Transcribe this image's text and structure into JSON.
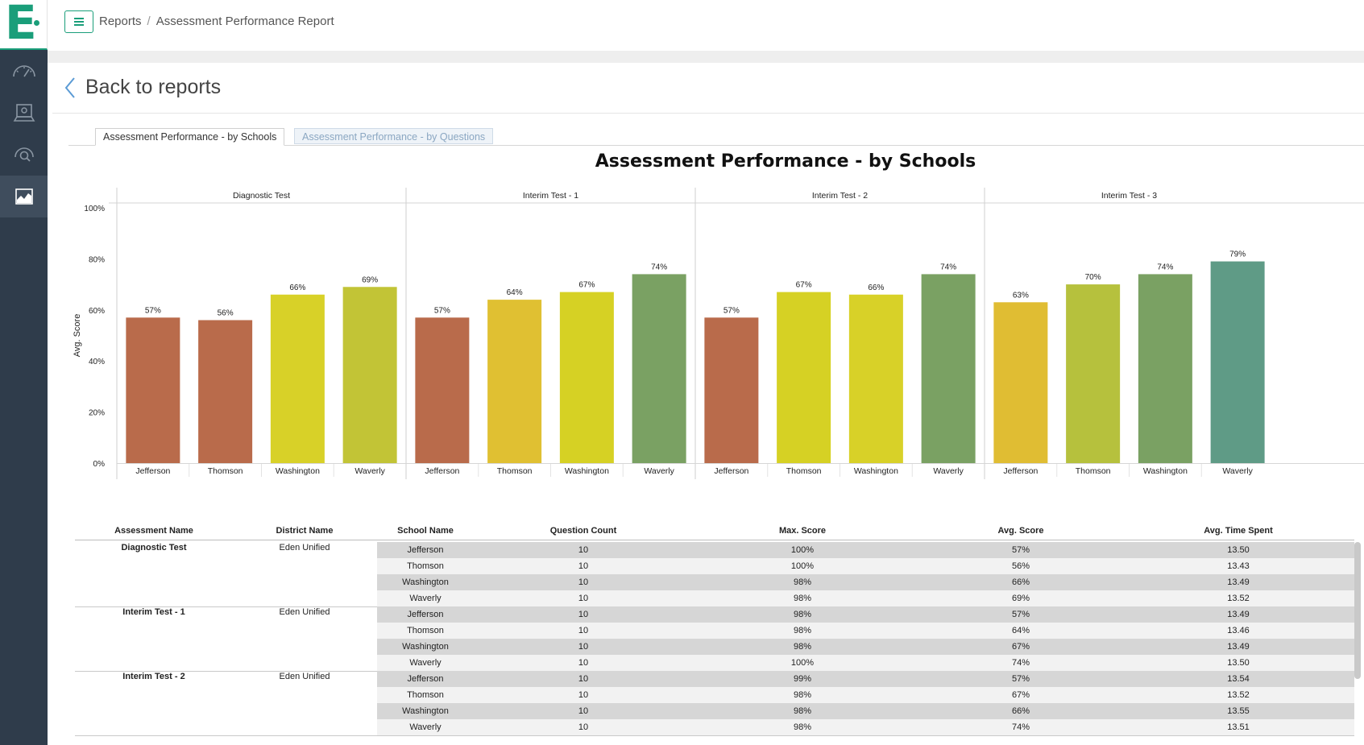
{
  "app": {
    "logo_letter": "E"
  },
  "sidebar": {
    "items": [
      {
        "icon": "dashboard-icon",
        "active": false
      },
      {
        "icon": "assessment-icon",
        "active": false
      },
      {
        "icon": "search-target-icon",
        "active": false
      },
      {
        "icon": "reports-chart-icon",
        "active": true
      }
    ]
  },
  "breadcrumb": {
    "root": "Reports",
    "separator": "/",
    "current": "Assessment Performance Report"
  },
  "back_link": "Back to reports",
  "tabs": [
    {
      "label": "Assessment Performance - by Schools",
      "active": true
    },
    {
      "label": "Assessment Performance - by Questions",
      "active": false
    }
  ],
  "colors": {
    "accent": "#1a9e7a",
    "sidebar": "#2f3c4b"
  },
  "chart_data": {
    "type": "bar",
    "title": "Assessment Performance - by Schools",
    "ylabel": "Avg. Score",
    "ylim": [
      0,
      100
    ],
    "yticks": [
      "0%",
      "20%",
      "40%",
      "60%",
      "80%",
      "100%"
    ],
    "panels": [
      {
        "name": "Diagnostic Test",
        "categories": [
          "Jefferson",
          "Thomson",
          "Washington",
          "Waverly"
        ],
        "values": [
          57,
          56,
          66,
          69
        ],
        "labels": [
          "57%",
          "56%",
          "66%",
          "69%"
        ]
      },
      {
        "name": "Interim Test - 1",
        "categories": [
          "Jefferson",
          "Thomson",
          "Washington",
          "Waverly"
        ],
        "values": [
          57,
          64,
          67,
          74
        ],
        "labels": [
          "57%",
          "64%",
          "67%",
          "74%"
        ]
      },
      {
        "name": "Interim Test - 2",
        "categories": [
          "Jefferson",
          "Thomson",
          "Washington",
          "Waverly"
        ],
        "values": [
          57,
          67,
          66,
          74
        ],
        "labels": [
          "57%",
          "67%",
          "66%",
          "74%"
        ]
      },
      {
        "name": "Interim Test - 3",
        "categories": [
          "Jefferson",
          "Thomson",
          "Washington",
          "Waverly"
        ],
        "values": [
          63,
          70,
          74,
          79
        ],
        "labels": [
          "63%",
          "70%",
          "74%",
          "79%"
        ]
      }
    ],
    "color_scale": {
      "56": "#b96b4b",
      "57": "#b96b4b",
      "63": "#e0bd33",
      "64": "#e0c032",
      "66": "#d8d128",
      "67": "#d6d124",
      "69": "#c2c436",
      "70": "#b6c13d",
      "74": "#7aa163",
      "79": "#5f9b86"
    },
    "grid": false,
    "legend": "none"
  },
  "table": {
    "headers": [
      "Assessment Name",
      "District Name",
      "School Name",
      "Question Count",
      "Max. Score",
      "Avg. Score",
      "Avg. Time Spent"
    ],
    "groups": [
      {
        "assessment": "Diagnostic Test",
        "district": "Eden Unified",
        "rows": [
          {
            "school": "Jefferson",
            "count": "10",
            "max": "100%",
            "avg": "57%",
            "time": "13.50"
          },
          {
            "school": "Thomson",
            "count": "10",
            "max": "100%",
            "avg": "56%",
            "time": "13.43"
          },
          {
            "school": "Washington",
            "count": "10",
            "max": "98%",
            "avg": "66%",
            "time": "13.49"
          },
          {
            "school": "Waverly",
            "count": "10",
            "max": "98%",
            "avg": "69%",
            "time": "13.52"
          }
        ]
      },
      {
        "assessment": "Interim Test - 1",
        "district": "Eden Unified",
        "rows": [
          {
            "school": "Jefferson",
            "count": "10",
            "max": "98%",
            "avg": "57%",
            "time": "13.49"
          },
          {
            "school": "Thomson",
            "count": "10",
            "max": "98%",
            "avg": "64%",
            "time": "13.46"
          },
          {
            "school": "Washington",
            "count": "10",
            "max": "98%",
            "avg": "67%",
            "time": "13.49"
          },
          {
            "school": "Waverly",
            "count": "10",
            "max": "100%",
            "avg": "74%",
            "time": "13.50"
          }
        ]
      },
      {
        "assessment": "Interim Test - 2",
        "district": "Eden Unified",
        "rows": [
          {
            "school": "Jefferson",
            "count": "10",
            "max": "99%",
            "avg": "57%",
            "time": "13.54"
          },
          {
            "school": "Thomson",
            "count": "10",
            "max": "98%",
            "avg": "67%",
            "time": "13.52"
          },
          {
            "school": "Washington",
            "count": "10",
            "max": "98%",
            "avg": "66%",
            "time": "13.55"
          },
          {
            "school": "Waverly",
            "count": "10",
            "max": "98%",
            "avg": "74%",
            "time": "13.51"
          }
        ]
      }
    ]
  }
}
